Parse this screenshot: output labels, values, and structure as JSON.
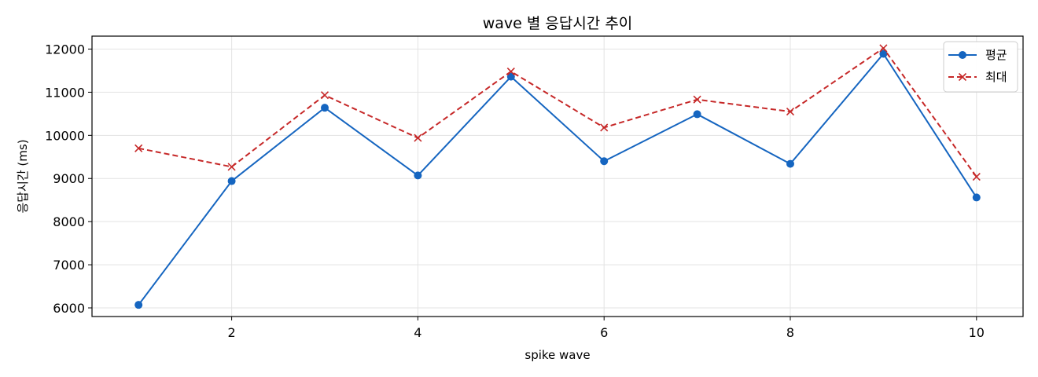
{
  "chart_data": {
    "type": "line",
    "title": "wave 별 응답시간 추이",
    "xlabel": "spike wave",
    "ylabel": "응답시간 (ms)",
    "x": [
      1,
      2,
      3,
      4,
      5,
      6,
      7,
      8,
      9,
      10
    ],
    "xlim": [
      0.5,
      10.5
    ],
    "ylim": [
      5800,
      12300
    ],
    "x_ticks": [
      2,
      4,
      6,
      8,
      10
    ],
    "y_ticks": [
      6000,
      7000,
      8000,
      9000,
      10000,
      11000,
      12000
    ],
    "grid": true,
    "legend_position": "top-right",
    "series": [
      {
        "name": "평균",
        "color": "#1565c0",
        "line_style": "solid",
        "marker": "circle",
        "values": [
          6070,
          8940,
          10640,
          9070,
          11360,
          9400,
          10490,
          9340,
          11890,
          8560
        ]
      },
      {
        "name": "최대",
        "color": "#c62828",
        "line_style": "dashed",
        "marker": "x",
        "values": [
          9700,
          9270,
          10930,
          9940,
          11480,
          10180,
          10830,
          10550,
          12020,
          9040
        ]
      }
    ]
  }
}
